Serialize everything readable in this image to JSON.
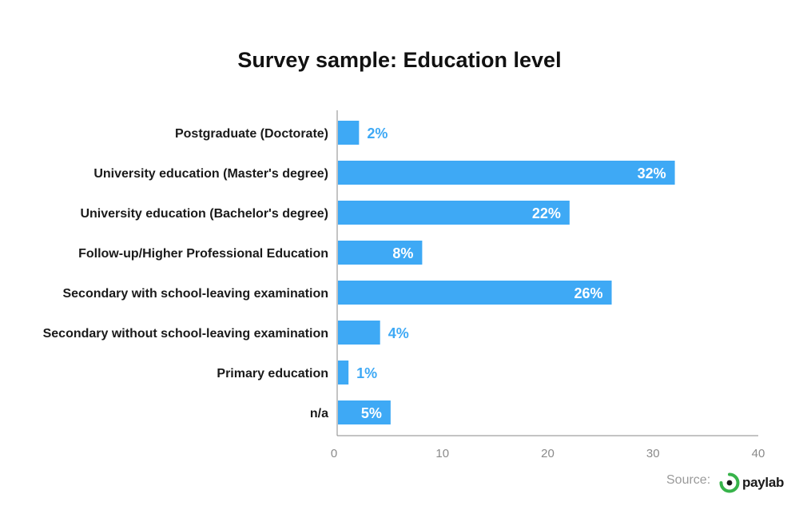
{
  "title": "Survey sample: Education level",
  "source": {
    "label": "Source:",
    "logo_text": "paylab"
  },
  "colors": {
    "bar": "#3ea9f5",
    "label_outside": "#3ea9f5",
    "label_inside": "#ffffff",
    "axis": "#888888",
    "logo_ring": "#37b34a",
    "logo_dot": "#1a1a1a"
  },
  "chart_data": {
    "type": "bar",
    "orientation": "horizontal",
    "categories": [
      "Postgraduate (Doctorate)",
      "University education (Master's degree)",
      "University education (Bachelor's degree)",
      "Follow-up/Higher Professional Education",
      "Secondary with school-leaving examination",
      "Secondary without school-leaving examination",
      "Primary education",
      "n/a"
    ],
    "values": [
      2,
      32,
      22,
      8,
      26,
      4,
      1,
      5
    ],
    "data_labels": [
      "2%",
      "32%",
      "22%",
      "8%",
      "26%",
      "4%",
      "1%",
      "5%"
    ],
    "xlim": [
      0,
      40
    ],
    "xticks": [
      0,
      10,
      20,
      30,
      40
    ],
    "grid": false,
    "legend": "none"
  }
}
